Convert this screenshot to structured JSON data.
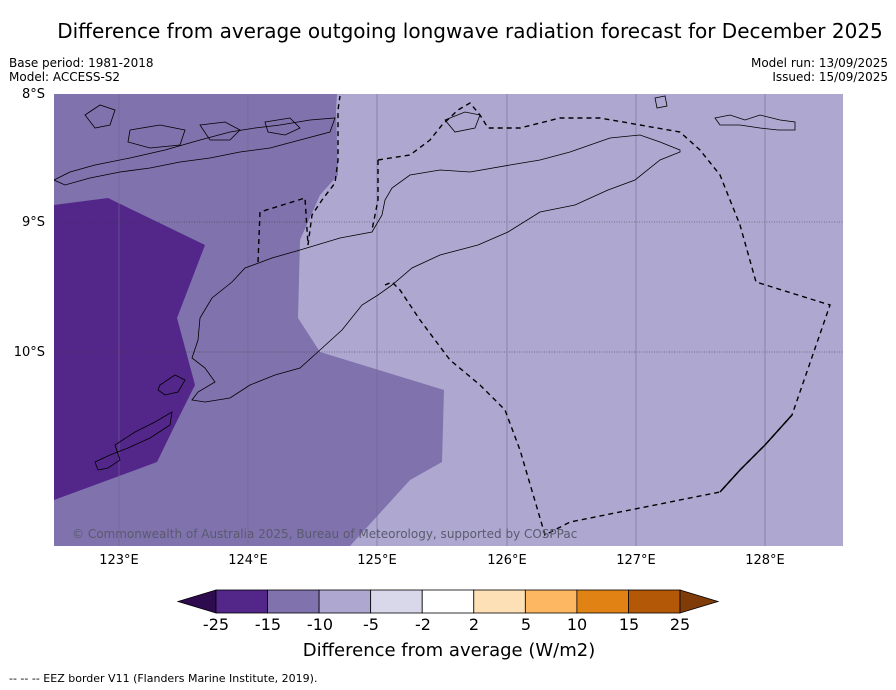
{
  "title": "Difference from average outgoing longwave radiation forecast for December 2025",
  "meta_left": [
    "Base period: 1981-2018",
    "Model: ACCESS-S2"
  ],
  "meta_right": [
    "Model run: 13/09/2025",
    "Issued: 15/09/2025"
  ],
  "map": {
    "lat_ticks": [
      "8°S",
      "9°S",
      "10°S"
    ],
    "lon_ticks": [
      "123°E",
      "124°E",
      "125°E",
      "126°E",
      "127°E",
      "128°E"
    ],
    "copyright": "© Commonwealth of Australia 2025, Bureau of Meteorology, supported by COSPPac",
    "colors": {
      "band_m15_m25": "#53268a",
      "band_m10_m15": "#7f72ad",
      "band_m5_m10": "#aea8d1",
      "grid": "#333333",
      "coast": "#000000",
      "eez": "#000000"
    }
  },
  "colorbar": {
    "ticks": [
      "-25",
      "-15",
      "-10",
      "-5",
      "-2",
      "2",
      "5",
      "10",
      "15",
      "25"
    ],
    "colors": [
      "#2e0a4f",
      "#53268a",
      "#7f72ad",
      "#aea8d1",
      "#d9d8eb",
      "#ffffff",
      "#fee0b6",
      "#fdb762",
      "#e08214",
      "#b35806",
      "#7f3b08"
    ],
    "label": "Difference from average (W/m2)"
  },
  "footnote": "--  --  -- EEZ border V11 (Flanders Marine Institute, 2019)."
}
